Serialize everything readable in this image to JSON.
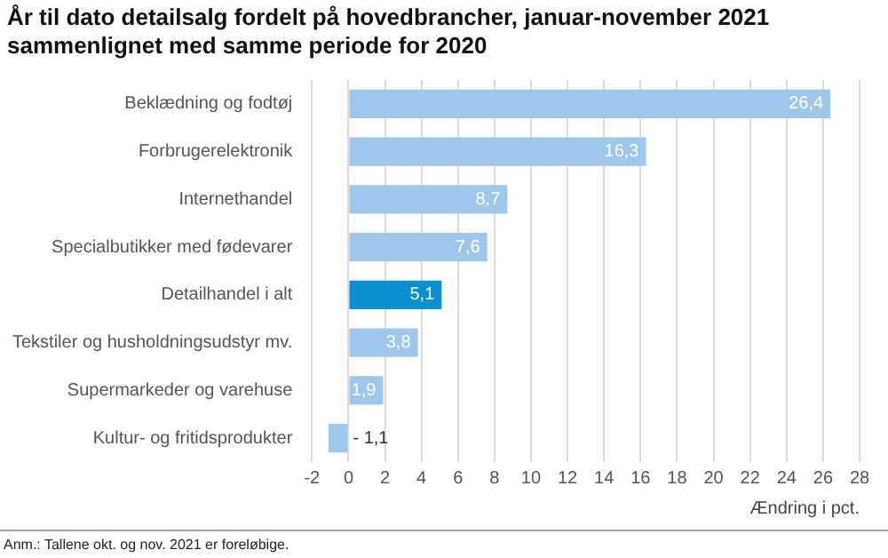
{
  "chart_data": {
    "type": "bar",
    "orientation": "horizontal",
    "title": "År til dato detailsalg fordelt på hovedbrancher, januar-november 2021 sammenlignet med samme periode for 2020",
    "xlabel": "Ændring i pct.",
    "categories": [
      "Beklædning og fodtøj",
      "Forbrugerelektronik",
      "Internethandel",
      "Specialbutikker med fødevarer",
      "Detailhandel i alt",
      "Tekstiler og husholdningsudstyr mv.",
      "Supermarkeder og varehuse",
      "Kultur- og fritidsprodukter"
    ],
    "values": [
      26.4,
      16.3,
      8.7,
      7.6,
      5.1,
      3.8,
      1.9,
      -1.1
    ],
    "value_labels": [
      "26,4",
      "16,3",
      "8,7",
      "7,6",
      "5,1",
      "3,8",
      "1,9",
      "- 1,1"
    ],
    "colors": [
      "#9dc8ec",
      "#9dc8ec",
      "#9dc8ec",
      "#9dc8ec",
      "#0a8fd3",
      "#9dc8ec",
      "#9dc8ec",
      "#9dc8ec"
    ],
    "xlim": [
      -2,
      28
    ],
    "xticks": [
      -2,
      0,
      2,
      4,
      6,
      8,
      10,
      12,
      14,
      16,
      18,
      20,
      22,
      24,
      26,
      28
    ],
    "grid": "x",
    "annotations": [
      "Anm.: Tallene okt. og nov. 2021 er foreløbige."
    ]
  }
}
